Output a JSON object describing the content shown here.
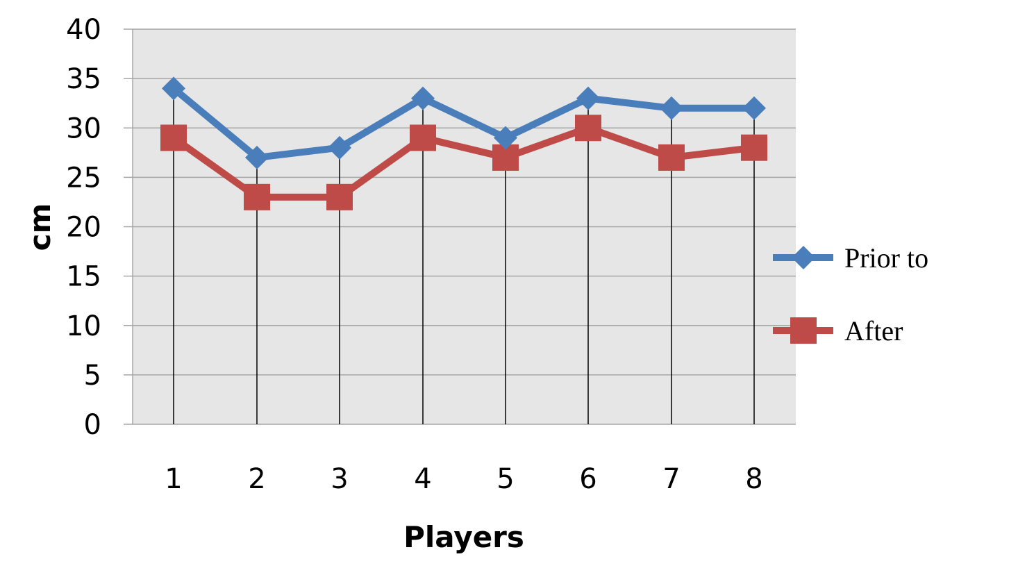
{
  "chart_data": {
    "type": "line",
    "title": "",
    "xlabel": "Players",
    "ylabel": "cm",
    "categories": [
      "1",
      "2",
      "3",
      "4",
      "5",
      "6",
      "7",
      "8"
    ],
    "ylim": [
      0,
      40
    ],
    "yticks": [
      "0",
      "5",
      "10",
      "15",
      "20",
      "25",
      "30",
      "35",
      "40"
    ],
    "grid": true,
    "legend_position": "right",
    "series": [
      {
        "name": "Prior to",
        "values": [
          34,
          27,
          28,
          33,
          29,
          33,
          32,
          32
        ],
        "color": "#4a7ebb",
        "marker": "diamond"
      },
      {
        "name": "After",
        "values": [
          29,
          23,
          23,
          29,
          27,
          30,
          27,
          28
        ],
        "color": "#be4b48",
        "marker": "square"
      }
    ]
  },
  "colors": {
    "plot_background": "#e6e6e6",
    "grid": "#a6a6a6"
  }
}
